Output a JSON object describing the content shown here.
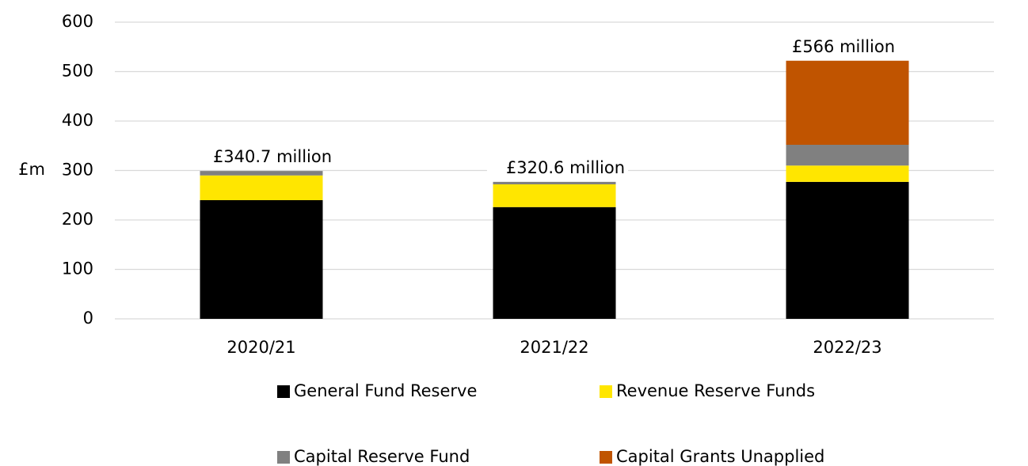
{
  "chart_data": {
    "type": "stacked_bar",
    "y_label": "£m",
    "categories": [
      "2020/21",
      "2021/22",
      "2022/23"
    ],
    "series": [
      {
        "name": "General Fund Reserve",
        "color": "#000000",
        "values": [
          240,
          226,
          277
        ]
      },
      {
        "name": "Revenue Reserve Funds",
        "color": "#ffe600",
        "values": [
          50,
          46,
          33
        ]
      },
      {
        "name": "Capital Reserve Fund",
        "color": "#808080",
        "values": [
          9,
          5,
          42
        ]
      },
      {
        "name": "Capital Grants Unapplied",
        "color": "#c05400",
        "values": [
          0,
          0,
          170
        ]
      }
    ],
    "annotations": [
      "£340.7 million",
      "£320.6 million",
      "£566 million"
    ],
    "ylim": [
      0,
      600
    ],
    "yticks": [
      0,
      100,
      200,
      300,
      400,
      500,
      600
    ],
    "grid": true
  }
}
